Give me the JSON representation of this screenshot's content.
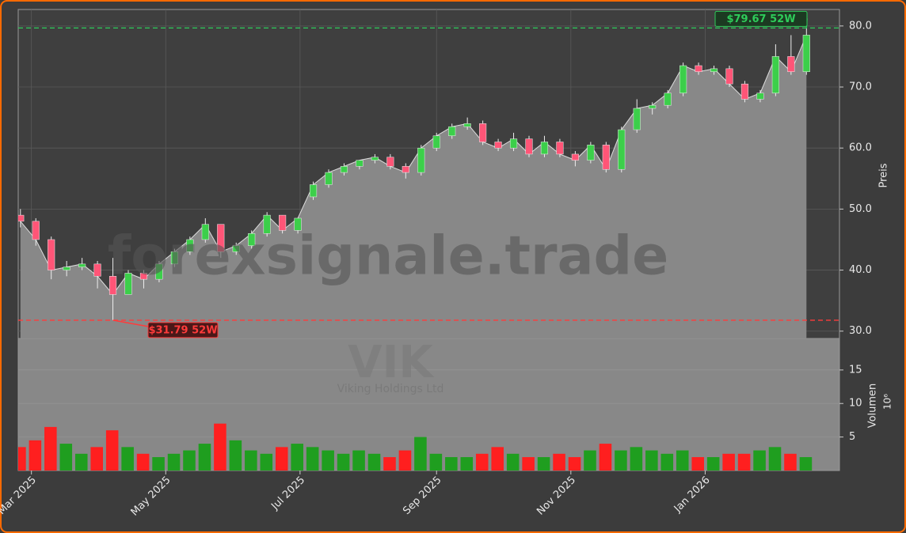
{
  "chart_data": {
    "type": "candlestick",
    "watermark": "forexsignale.trade",
    "ticker": "VIK",
    "company": "Viking Holdings Ltd",
    "ylabel": "Preis",
    "volume_label": "Volumen",
    "volume_unit": "10⁶",
    "x": [
      "2025-02-24",
      "2025-03-03",
      "2025-03-10",
      "2025-03-17",
      "2025-03-24",
      "2025-03-31",
      "2025-04-07",
      "2025-04-14",
      "2025-04-21",
      "2025-04-28",
      "2025-05-05",
      "2025-05-12",
      "2025-05-19",
      "2025-05-26",
      "2025-06-02",
      "2025-06-09",
      "2025-06-16",
      "2025-06-23",
      "2025-06-30",
      "2025-07-07",
      "2025-07-14",
      "2025-07-21",
      "2025-07-28",
      "2025-08-04",
      "2025-08-11",
      "2025-08-18",
      "2025-08-25",
      "2025-09-01",
      "2025-09-08",
      "2025-09-15",
      "2025-09-22",
      "2025-09-29",
      "2025-10-06",
      "2025-10-13",
      "2025-10-20",
      "2025-10-27",
      "2025-11-03",
      "2025-11-10",
      "2025-11-17",
      "2025-11-24",
      "2025-12-01",
      "2025-12-08",
      "2025-12-15",
      "2025-12-22",
      "2025-12-29",
      "2026-01-05",
      "2026-01-12",
      "2026-01-19",
      "2026-01-26",
      "2026-02-02",
      "2026-02-09",
      "2026-02-16"
    ],
    "open": [
      49,
      48,
      45,
      40,
      40.5,
      41,
      39,
      36,
      39.5,
      38.5,
      41,
      43,
      45,
      47.5,
      43,
      44,
      46,
      49,
      46.5,
      52,
      54,
      56,
      57,
      58,
      58.5,
      57,
      56,
      60,
      62,
      63.5,
      64,
      61,
      60,
      61.5,
      59,
      61,
      59,
      58,
      60.5,
      56.5,
      63,
      66.5,
      67,
      69,
      73.5,
      72.5,
      73,
      70.5,
      68,
      69,
      75,
      72.5
    ],
    "high": [
      50,
      48.5,
      45.5,
      41.5,
      42,
      41.5,
      42,
      40,
      40,
      41.5,
      43.5,
      45.5,
      48.5,
      47.5,
      44.5,
      46.5,
      49.5,
      49,
      48.5,
      54.5,
      56.5,
      57.5,
      58,
      59,
      59,
      57.5,
      60.5,
      62.5,
      64,
      65,
      64.5,
      61.5,
      62.5,
      62,
      62,
      61.5,
      59.5,
      61,
      61,
      63.5,
      68,
      67.5,
      69.5,
      74,
      74,
      73.5,
      73.5,
      71,
      69.5,
      77,
      78.5,
      79.67
    ],
    "low": [
      47,
      44,
      38.5,
      39,
      40,
      37,
      31.79,
      36,
      37,
      38,
      40.5,
      42.5,
      44.5,
      42,
      42.5,
      43.5,
      45.5,
      46,
      46,
      51.5,
      53.5,
      55.5,
      56.5,
      57.5,
      56.5,
      55,
      55.5,
      59.5,
      61.5,
      63,
      60.5,
      59.5,
      59.5,
      58.5,
      58.5,
      58.5,
      57,
      57.5,
      56,
      56,
      62.5,
      65.5,
      66.5,
      68.5,
      72,
      72,
      70,
      67.5,
      67.5,
      68.5,
      72,
      72
    ],
    "close": [
      48,
      45,
      40,
      40.5,
      41,
      39,
      36,
      39.5,
      38.5,
      41,
      43,
      45,
      47.5,
      43,
      44,
      46,
      49,
      46.5,
      48.5,
      54,
      56,
      57,
      58,
      58.5,
      57,
      56,
      60,
      62,
      63.5,
      64,
      61,
      60,
      61.5,
      59,
      61,
      59,
      58,
      60.5,
      56.5,
      63,
      66.5,
      67,
      69,
      73.5,
      72.5,
      73,
      70.5,
      68,
      69,
      75,
      72.5,
      78.5
    ],
    "volume": [
      3.5,
      4.5,
      6.5,
      4,
      2.5,
      3.5,
      6,
      3.5,
      2.5,
      2,
      2.5,
      3,
      4,
      7,
      4.5,
      3,
      2.5,
      3.5,
      4,
      3.5,
      3,
      2.5,
      3,
      2.5,
      2,
      3,
      5,
      2.5,
      2,
      2,
      2.5,
      3.5,
      2.5,
      2,
      2,
      2.5,
      2,
      3,
      4,
      3,
      3.5,
      3,
      2.5,
      3,
      2,
      2,
      2.5,
      2.5,
      3,
      3.5,
      2.5,
      2
    ],
    "up_color": "#3ccf4a",
    "down_color": "#ff5577",
    "volume_up_color": "#1f9e1f",
    "volume_down_color": "#ff1f1f",
    "xlim": [
      "2025-02-23",
      "2026-03-03"
    ],
    "xticks": [
      {
        "value": "2025-03-01",
        "label": "Mar 2025"
      },
      {
        "value": "2025-05-01",
        "label": "May 2025"
      },
      {
        "value": "2025-07-01",
        "label": "Jul 2025"
      },
      {
        "value": "2025-09-01",
        "label": "Sep 2025"
      },
      {
        "value": "2025-11-01",
        "label": "Nov 2025"
      },
      {
        "value": "2026-01-01",
        "label": "Jan 2026"
      }
    ],
    "ylim": [
      28.8,
      82.7
    ],
    "yticks": [
      {
        "value": 30,
        "label": "30.0"
      },
      {
        "value": 40,
        "label": "40.0"
      },
      {
        "value": 50,
        "label": "50.0"
      },
      {
        "value": 60,
        "label": "60.0"
      },
      {
        "value": 70,
        "label": "70.0"
      },
      {
        "value": 80,
        "label": "80.0"
      }
    ],
    "volume_ylim": [
      0,
      19.7
    ],
    "volume_yticks": [
      5,
      10,
      15
    ],
    "grid": true,
    "high_line": {
      "value": 79.67,
      "label": "$79.67 52W",
      "color": "#2ecc5a"
    },
    "low_line": {
      "value": 31.79,
      "label": "$31.79 52W",
      "color": "#ff3b3b"
    }
  }
}
